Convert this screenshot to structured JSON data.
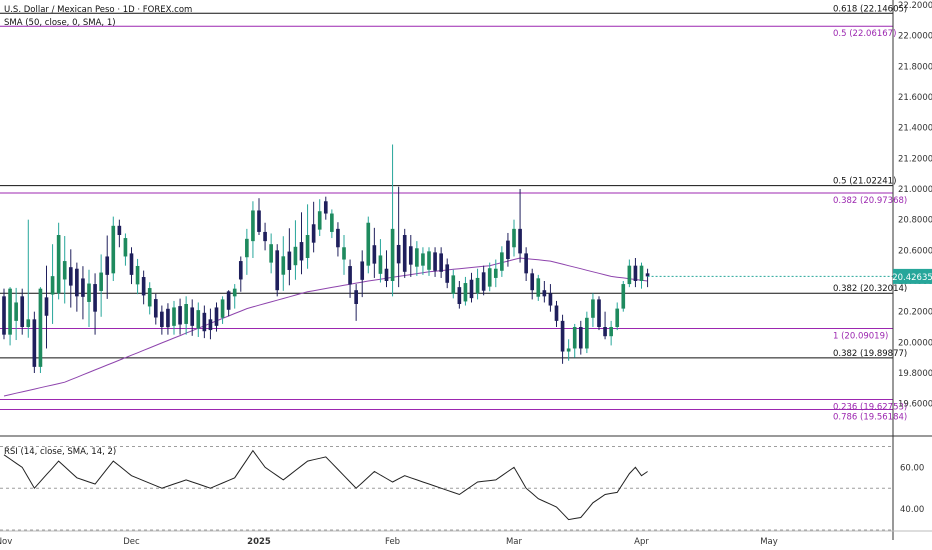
{
  "header": {
    "symbol_title": "U.S. Dollar / Mexican Peso · 1D · FOREX.com",
    "sma_label": "SMA (50, close, 0, SMA, 1)"
  },
  "rsi_label": "RSI (14, close, SMA, 14, 2)",
  "colors": {
    "up": "#26a69a",
    "up_body": "#1e8a5e",
    "down": "#1f1f5c",
    "sma": "#8e44ad",
    "fib_black": "#111111",
    "fib_purple": "#9c27b0",
    "rsi_line": "#222222",
    "price_tag_bg": "#26a69a",
    "price_tag_text": "#ffffff"
  },
  "price_tag": "20.42635",
  "chart_data": {
    "type": "candlestick",
    "price_axis": {
      "min": 19.5,
      "max": 22.2,
      "ticks": [
        "22.20000",
        "22.00000",
        "21.80000",
        "21.60000",
        "21.40000",
        "21.20000",
        "21.00000",
        "20.80000",
        "20.60000",
        "20.40000",
        "20.20000",
        "20.00000",
        "19.80000",
        "19.60000"
      ]
    },
    "x_labels": [
      {
        "label": "Nov",
        "bar": 0
      },
      {
        "label": "Dec",
        "bar": 21
      },
      {
        "label": "2025",
        "bar": 42
      },
      {
        "label": "Feb",
        "bar": 64
      },
      {
        "label": "Mar",
        "bar": 84
      },
      {
        "label": "Apr",
        "bar": 105
      },
      {
        "label": "May",
        "bar": 126
      }
    ],
    "bar_count": 107,
    "future_bars": 25,
    "ohlc_anchors": [
      {
        "bar": 0,
        "open": 20.3,
        "high": 20.35,
        "low": 20.02,
        "close": 20.05
      },
      {
        "bar": 1,
        "open": 20.05,
        "high": 20.36,
        "low": 19.98,
        "close": 20.35
      },
      {
        "bar": 3,
        "open": 20.3,
        "high": 20.35,
        "low": 20.05,
        "close": 20.1
      },
      {
        "bar": 4,
        "open": 20.1,
        "high": 20.8,
        "low": 20.03,
        "close": 20.15
      },
      {
        "bar": 5,
        "open": 20.15,
        "high": 20.2,
        "low": 19.8,
        "close": 19.84
      },
      {
        "bar": 6,
        "open": 19.84,
        "high": 20.36,
        "low": 19.8,
        "close": 20.35
      },
      {
        "bar": 9,
        "open": 20.32,
        "high": 20.78,
        "low": 20.28,
        "close": 20.7
      },
      {
        "bar": 12,
        "open": 20.48,
        "high": 20.52,
        "low": 20.2,
        "close": 20.3
      },
      {
        "bar": 15,
        "open": 20.38,
        "high": 20.45,
        "low": 20.05,
        "close": 20.2
      },
      {
        "bar": 18,
        "open": 20.45,
        "high": 20.82,
        "low": 20.4,
        "close": 20.76
      },
      {
        "bar": 19,
        "open": 20.76,
        "high": 20.8,
        "low": 20.62,
        "close": 20.7
      },
      {
        "bar": 21,
        "open": 20.58,
        "high": 20.62,
        "low": 20.38,
        "close": 20.44
      },
      {
        "bar": 26,
        "open": 20.2,
        "high": 20.24,
        "low": 20.05,
        "close": 20.1
      },
      {
        "bar": 30,
        "open": 20.12,
        "high": 20.3,
        "low": 20.05,
        "close": 20.25
      },
      {
        "bar": 34,
        "open": 20.15,
        "high": 20.22,
        "low": 20.02,
        "close": 20.08
      },
      {
        "bar": 38,
        "open": 20.3,
        "high": 20.38,
        "low": 20.22,
        "close": 20.35
      },
      {
        "bar": 41,
        "open": 20.66,
        "high": 20.92,
        "low": 20.55,
        "close": 20.86
      },
      {
        "bar": 42,
        "open": 20.86,
        "high": 20.94,
        "low": 20.7,
        "close": 20.72
      },
      {
        "bar": 43,
        "open": 20.72,
        "high": 20.78,
        "low": 20.6,
        "close": 20.66
      },
      {
        "bar": 45,
        "open": 20.6,
        "high": 20.64,
        "low": 20.3,
        "close": 20.34
      },
      {
        "bar": 50,
        "open": 20.55,
        "high": 20.9,
        "low": 20.48,
        "close": 20.7
      },
      {
        "bar": 53,
        "open": 20.92,
        "high": 20.95,
        "low": 20.8,
        "close": 20.84
      },
      {
        "bar": 56,
        "open": 20.54,
        "high": 20.7,
        "low": 20.44,
        "close": 20.62
      },
      {
        "bar": 58,
        "open": 20.34,
        "high": 20.38,
        "low": 20.14,
        "close": 20.25
      },
      {
        "bar": 60,
        "open": 20.5,
        "high": 20.82,
        "low": 20.45,
        "close": 20.78
      },
      {
        "bar": 63,
        "open": 20.48,
        "high": 20.6,
        "low": 20.36,
        "close": 20.4
      },
      {
        "bar": 64,
        "open": 20.4,
        "high": 21.29,
        "low": 20.3,
        "close": 20.74
      },
      {
        "bar": 66,
        "open": 20.7,
        "high": 20.74,
        "low": 20.42,
        "close": 20.46
      },
      {
        "bar": 69,
        "open": 20.5,
        "high": 20.62,
        "low": 20.44,
        "close": 20.58
      },
      {
        "bar": 72,
        "open": 20.58,
        "high": 20.62,
        "low": 20.42,
        "close": 20.46
      },
      {
        "bar": 75,
        "open": 20.36,
        "high": 20.4,
        "low": 20.22,
        "close": 20.25
      },
      {
        "bar": 78,
        "open": 20.32,
        "high": 20.48,
        "low": 20.28,
        "close": 20.42
      },
      {
        "bar": 81,
        "open": 20.42,
        "high": 20.54,
        "low": 20.36,
        "close": 20.48
      },
      {
        "bar": 84,
        "open": 20.62,
        "high": 20.8,
        "low": 20.56,
        "close": 20.74
      },
      {
        "bar": 85,
        "open": 20.74,
        "high": 21.0,
        "low": 20.52,
        "close": 20.58
      },
      {
        "bar": 86,
        "open": 20.58,
        "high": 20.62,
        "low": 20.4,
        "close": 20.45
      },
      {
        "bar": 87,
        "open": 20.45,
        "high": 20.48,
        "low": 20.28,
        "close": 20.34
      },
      {
        "bar": 89,
        "open": 20.34,
        "high": 20.4,
        "low": 20.26,
        "close": 20.3
      },
      {
        "bar": 90,
        "open": 20.32,
        "high": 20.38,
        "low": 20.2,
        "close": 20.24
      },
      {
        "bar": 91,
        "open": 20.24,
        "high": 20.27,
        "low": 20.1,
        "close": 20.14
      },
      {
        "bar": 92,
        "open": 20.14,
        "high": 20.18,
        "low": 19.86,
        "close": 19.94
      },
      {
        "bar": 93,
        "open": 19.94,
        "high": 20.02,
        "low": 19.88,
        "close": 19.96
      },
      {
        "bar": 94,
        "open": 19.96,
        "high": 20.12,
        "low": 19.9,
        "close": 20.1
      },
      {
        "bar": 95,
        "open": 20.1,
        "high": 20.14,
        "low": 19.92,
        "close": 19.96
      },
      {
        "bar": 96,
        "open": 19.96,
        "high": 20.2,
        "low": 19.93,
        "close": 20.16
      },
      {
        "bar": 97,
        "open": 20.16,
        "high": 20.32,
        "low": 20.1,
        "close": 20.28
      },
      {
        "bar": 98,
        "open": 20.28,
        "high": 20.3,
        "low": 20.08,
        "close": 20.1
      },
      {
        "bar": 99,
        "open": 20.1,
        "high": 20.2,
        "low": 20.02,
        "close": 20.04
      },
      {
        "bar": 100,
        "open": 20.04,
        "high": 20.14,
        "low": 19.98,
        "close": 20.1
      },
      {
        "bar": 101,
        "open": 20.1,
        "high": 20.26,
        "low": 20.08,
        "close": 20.22
      },
      {
        "bar": 102,
        "open": 20.22,
        "high": 20.4,
        "low": 20.2,
        "close": 20.38
      },
      {
        "bar": 103,
        "open": 20.38,
        "high": 20.54,
        "low": 20.36,
        "close": 20.5
      },
      {
        "bar": 104,
        "open": 20.5,
        "high": 20.55,
        "low": 20.36,
        "close": 20.4
      },
      {
        "bar": 105,
        "open": 20.4,
        "high": 20.52,
        "low": 20.35,
        "close": 20.5
      },
      {
        "bar": 106,
        "open": 20.45,
        "high": 20.48,
        "low": 20.36,
        "close": 20.43
      }
    ],
    "sma_anchors": [
      {
        "bar": 0,
        "value": 19.65
      },
      {
        "bar": 10,
        "value": 19.74
      },
      {
        "bar": 20,
        "value": 19.9
      },
      {
        "bar": 30,
        "value": 20.06
      },
      {
        "bar": 40,
        "value": 20.22
      },
      {
        "bar": 50,
        "value": 20.33
      },
      {
        "bar": 60,
        "value": 20.4
      },
      {
        "bar": 70,
        "value": 20.46
      },
      {
        "bar": 80,
        "value": 20.5
      },
      {
        "bar": 85,
        "value": 20.55
      },
      {
        "bar": 90,
        "value": 20.53
      },
      {
        "bar": 95,
        "value": 20.48
      },
      {
        "bar": 100,
        "value": 20.43
      },
      {
        "bar": 106,
        "value": 20.4
      }
    ],
    "fib_levels": [
      {
        "price": 22.14605,
        "label": "0.618 (22.14605)",
        "color": "black"
      },
      {
        "price": 22.06167,
        "label": "0.5 (22.06167)",
        "color": "purple"
      },
      {
        "price": 21.02241,
        "label": "0.5 (21.02241)",
        "color": "black"
      },
      {
        "price": 20.97368,
        "label": "0.382 (20.97368)",
        "color": "purple"
      },
      {
        "price": 20.32014,
        "label": "0.382 (20.32014)",
        "color": "black"
      },
      {
        "price": 20.09019,
        "label": "1 (20.09019)",
        "color": "purple"
      },
      {
        "price": 19.89877,
        "label": "0.382 (19.89877)",
        "color": "black"
      },
      {
        "price": 19.62753,
        "label": "0.236 (19.62753)",
        "color": "purple"
      },
      {
        "price": 19.56184,
        "label": "0.786 (19.56184)",
        "color": "purple"
      }
    ],
    "rsi": {
      "axis_min": 30,
      "axis_max": 75,
      "ticks": [
        "60.00",
        "40.00"
      ],
      "bands": [
        70,
        50,
        30
      ],
      "anchors": [
        {
          "bar": 0,
          "value": 66
        },
        {
          "bar": 3,
          "value": 60
        },
        {
          "bar": 5,
          "value": 50
        },
        {
          "bar": 9,
          "value": 63
        },
        {
          "bar": 12,
          "value": 55
        },
        {
          "bar": 15,
          "value": 52
        },
        {
          "bar": 18,
          "value": 63
        },
        {
          "bar": 21,
          "value": 56
        },
        {
          "bar": 26,
          "value": 50
        },
        {
          "bar": 30,
          "value": 54
        },
        {
          "bar": 34,
          "value": 50
        },
        {
          "bar": 38,
          "value": 55
        },
        {
          "bar": 41,
          "value": 68
        },
        {
          "bar": 43,
          "value": 60
        },
        {
          "bar": 46,
          "value": 54
        },
        {
          "bar": 50,
          "value": 63
        },
        {
          "bar": 53,
          "value": 65
        },
        {
          "bar": 58,
          "value": 50
        },
        {
          "bar": 61,
          "value": 58
        },
        {
          "bar": 64,
          "value": 53
        },
        {
          "bar": 66,
          "value": 56
        },
        {
          "bar": 70,
          "value": 52
        },
        {
          "bar": 75,
          "value": 47
        },
        {
          "bar": 78,
          "value": 53
        },
        {
          "bar": 81,
          "value": 54
        },
        {
          "bar": 84,
          "value": 60
        },
        {
          "bar": 86,
          "value": 50
        },
        {
          "bar": 88,
          "value": 45
        },
        {
          "bar": 91,
          "value": 41
        },
        {
          "bar": 93,
          "value": 35
        },
        {
          "bar": 95,
          "value": 36
        },
        {
          "bar": 97,
          "value": 43
        },
        {
          "bar": 99,
          "value": 47
        },
        {
          "bar": 101,
          "value": 48
        },
        {
          "bar": 103,
          "value": 57
        },
        {
          "bar": 104,
          "value": 60
        },
        {
          "bar": 105,
          "value": 56
        },
        {
          "bar": 106,
          "value": 58
        }
      ]
    }
  }
}
